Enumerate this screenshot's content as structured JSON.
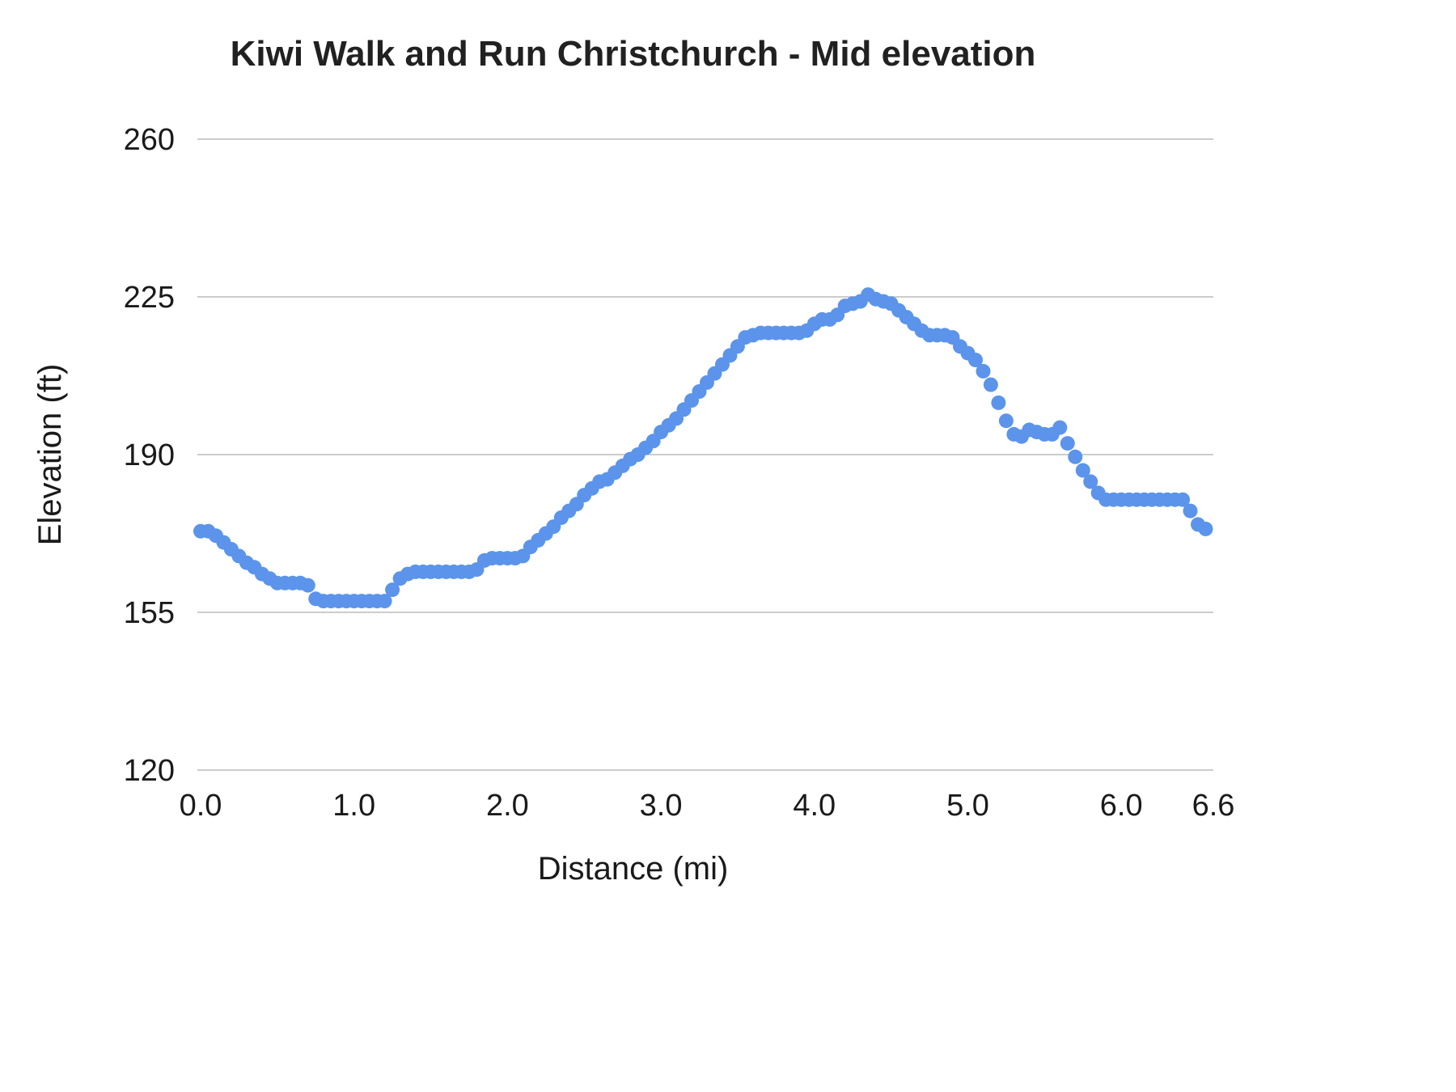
{
  "chart_data": {
    "type": "scatter",
    "title": "Kiwi Walk and Run Christchurch - Mid elevation",
    "xlabel": "Distance (mi)",
    "ylabel": "Elevation (ft)",
    "xlim": [
      0,
      6.6
    ],
    "ylim": [
      120,
      260
    ],
    "grid": "horizontal-only",
    "legend": "none",
    "point_color": "#5b94ea",
    "grid_color": "#cccccc",
    "x_tick_values": [
      0,
      1,
      2,
      3,
      4,
      5,
      6,
      6.6
    ],
    "x_tick_labels": [
      "0.0",
      "1.0",
      "2.0",
      "3.0",
      "4.0",
      "5.0",
      "6.0",
      "6.6"
    ],
    "y_tick_values": [
      120,
      155,
      190,
      225,
      260
    ],
    "y_tick_labels": [
      "120",
      "155",
      "190",
      "225",
      "260"
    ],
    "series_name": "Mid elevation",
    "x": [
      0,
      0.05,
      0.1,
      0.15,
      0.2,
      0.25,
      0.3,
      0.35,
      0.4,
      0.45,
      0.5,
      0.55,
      0.6,
      0.65,
      0.7,
      0.75,
      0.8,
      0.85,
      0.9,
      0.95,
      1,
      1.05,
      1.1,
      1.15,
      1.2,
      1.25,
      1.3,
      1.35,
      1.4,
      1.45,
      1.5,
      1.55,
      1.6,
      1.65,
      1.7,
      1.75,
      1.8,
      1.85,
      1.9,
      1.95,
      2,
      2.05,
      2.1,
      2.15,
      2.2,
      2.25,
      2.3,
      2.35,
      2.4,
      2.45,
      2.5,
      2.55,
      2.6,
      2.65,
      2.7,
      2.75,
      2.8,
      2.85,
      2.9,
      2.95,
      3,
      3.05,
      3.1,
      3.15,
      3.2,
      3.25,
      3.3,
      3.35,
      3.4,
      3.45,
      3.5,
      3.55,
      3.6,
      3.65,
      3.7,
      3.75,
      3.8,
      3.85,
      3.9,
      3.95,
      4,
      4.05,
      4.1,
      4.15,
      4.2,
      4.25,
      4.3,
      4.35,
      4.4,
      4.45,
      4.5,
      4.55,
      4.6,
      4.65,
      4.7,
      4.75,
      4.8,
      4.85,
      4.9,
      4.95,
      5,
      5.05,
      5.1,
      5.15,
      5.2,
      5.25,
      5.3,
      5.35,
      5.4,
      5.45,
      5.5,
      5.55,
      5.6,
      5.65,
      5.7,
      5.75,
      5.8,
      5.85,
      5.9,
      5.95,
      6,
      6.05,
      6.1,
      6.15,
      6.2,
      6.25,
      6.3,
      6.35,
      6.4,
      6.45,
      6.5,
      6.55
    ],
    "elevation_ft": [
      173,
      173,
      172,
      170.5,
      169,
      167.5,
      166,
      165,
      163.5,
      162.5,
      161.5,
      161.5,
      161.5,
      161.5,
      161,
      158,
      157.5,
      157.5,
      157.5,
      157.5,
      157.5,
      157.5,
      157.5,
      157.5,
      157.5,
      160,
      162.5,
      163.5,
      164,
      164,
      164,
      164,
      164,
      164,
      164,
      164,
      164.5,
      166.5,
      167,
      167,
      167,
      167,
      167.5,
      169.5,
      171,
      172.5,
      174,
      176,
      177.5,
      179,
      181,
      182.5,
      184,
      184.5,
      186,
      187.5,
      189,
      190,
      191.5,
      193,
      195,
      196.5,
      198,
      200,
      202,
      204,
      206,
      208,
      210,
      212,
      214,
      216,
      216.5,
      217,
      217,
      217,
      217,
      217,
      217,
      217.5,
      219,
      220,
      220,
      221,
      223,
      223.5,
      224,
      225.5,
      224.5,
      224,
      223.5,
      222,
      220.5,
      219,
      217.5,
      216.5,
      216.5,
      216.5,
      216,
      214,
      212.5,
      211,
      208.5,
      205.5,
      201.5,
      197.5,
      194.5,
      194,
      195.5,
      195,
      194.5,
      194.5,
      196,
      192.5,
      189.5,
      186.5,
      184,
      181.5,
      180,
      180,
      180,
      180,
      180,
      180,
      180,
      180,
      180,
      180,
      180,
      177.5,
      174.5,
      173.5
    ]
  }
}
